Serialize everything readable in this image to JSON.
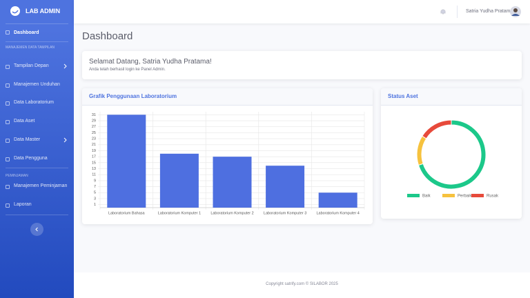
{
  "sidebar": {
    "brand": "LAB ADMIN",
    "dashboard": "Dashboard",
    "groups": [
      {
        "heading": "MANAJEMEN DATA TAMPILAN",
        "items": [
          {
            "label": "Tampilan Depan",
            "submenu": true
          },
          {
            "label": "Manajemen Unduhan",
            "submenu": false
          },
          {
            "label": "Data Laboratorium",
            "submenu": false
          },
          {
            "label": "Data Aset",
            "submenu": false
          },
          {
            "label": "Data Master",
            "submenu": true
          },
          {
            "label": "Data Pengguna",
            "submenu": false
          }
        ]
      },
      {
        "heading": "PEMINJAMAN",
        "items": [
          {
            "label": "Manajemen Peminjaman",
            "submenu": false
          },
          {
            "label": "Laporan",
            "submenu": false
          }
        ]
      }
    ]
  },
  "topbar": {
    "user": "Satria Yudha Pratama"
  },
  "page": {
    "title": "Dashboard"
  },
  "welcome": {
    "title": "Selamat Datang, Satria Yudha Pratama!",
    "text": "Anda telah berhasil login ke Panel Admin."
  },
  "chart_data": [
    {
      "type": "bar",
      "title": "Grafik Penggunaan Laboratorium",
      "categories": [
        "Laboratorium Bahasa",
        "Laboratorium Komputer 1",
        "Laboratorium Komputer 2",
        "Laboratorium Komputer 3",
        "Laboratorium Komputer 4"
      ],
      "values": [
        31,
        18,
        17,
        14,
        5
      ],
      "color": "#4e6fe0",
      "ylim": [
        0,
        32
      ],
      "yticks": [
        1,
        3,
        5,
        7,
        9,
        11,
        13,
        15,
        17,
        19,
        21,
        23,
        25,
        27,
        29,
        31
      ],
      "grid": true
    },
    {
      "type": "doughnut",
      "title": "Status Aset",
      "categories": [
        "Baik",
        "Perbaikan",
        "Rusak"
      ],
      "values": [
        70,
        14,
        16
      ],
      "colors": [
        "#1cc88a",
        "#f6c23e",
        "#e74a3b"
      ],
      "legend": "bottom"
    }
  ],
  "footer": "Copyright satrify.com © SILABOR 2025"
}
